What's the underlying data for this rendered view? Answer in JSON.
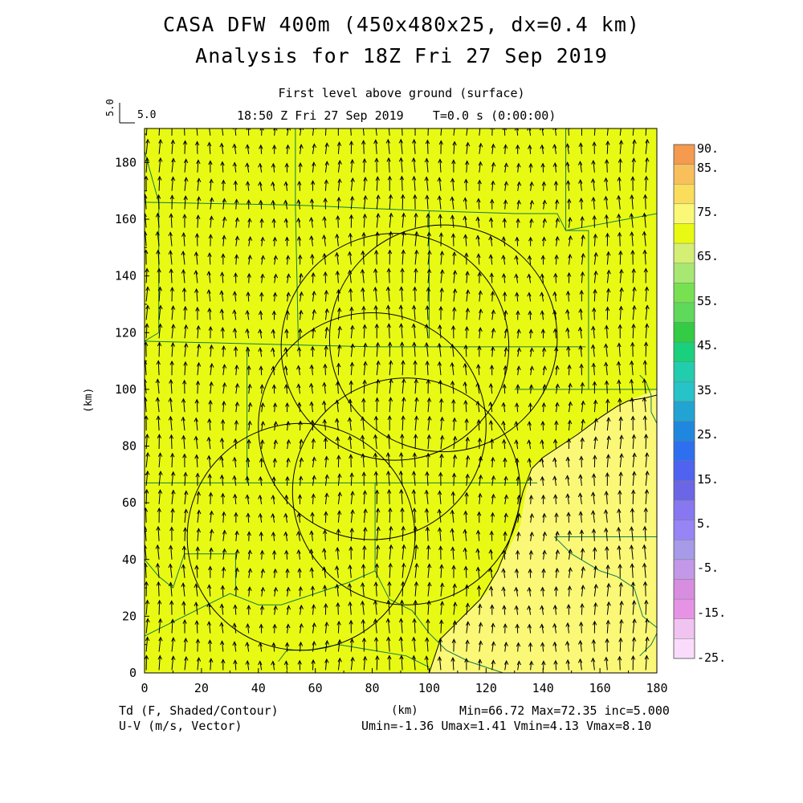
{
  "header": {
    "title_line1": "CASA DFW 400m (450x480x25, dx=0.4 km)",
    "title_line2": "Analysis for 18Z Fri 27 Sep 2019",
    "subtitle": "First level above ground (surface)",
    "time_line": "18:50 Z Fri 27 Sep 2019    T=0.0 s (0:00:00)",
    "ref_vector_value": "5.0",
    "ref_vector_label": "5.0"
  },
  "axes": {
    "x_ticks": [
      "0",
      "20",
      "40",
      "60",
      "80",
      "100",
      "120",
      "140",
      "160",
      "180"
    ],
    "y_ticks": [
      "0",
      "20",
      "40",
      "60",
      "80",
      "100",
      "120",
      "140",
      "160",
      "180"
    ],
    "x_unit": "(km)",
    "y_unit": "(km)",
    "x_range": [
      0,
      180
    ],
    "y_range": [
      0,
      192
    ]
  },
  "colorbar": {
    "labels": [
      "90.",
      "85.",
      "75.",
      "65.",
      "55.",
      "45.",
      "35.",
      "25.",
      "15.",
      "5.",
      "-5.",
      "-15.",
      "-25."
    ],
    "colors": [
      "#f59a4e",
      "#f8bf5b",
      "#fbdd5c",
      "#fbf877",
      "#e8fa13",
      "#d4ef74",
      "#a7e873",
      "#77e151",
      "#5fd95b",
      "#33cc44",
      "#19d17d",
      "#22cdae",
      "#27c3c8",
      "#21a4d3",
      "#1f88de",
      "#2e6ff0",
      "#4f62f0",
      "#6b66e6",
      "#8778f1",
      "#9784f5",
      "#a79ae9",
      "#c498e8",
      "#d88ee0",
      "#e693e6",
      "#f0c3f0",
      "#fbdbfb"
    ]
  },
  "footer": {
    "left_line1": "Td (F, Shaded/Contour)",
    "left_line2": "U-V (m/s, Vector)",
    "x_unit": "(km)",
    "stats_line1": "Min=66.72 Max=72.35 inc=5.000",
    "stats_line2": "Umin=-1.36 Umax=1.41 Vmin=4.13 Vmax=8.10"
  },
  "field": {
    "variable": "Td",
    "min": 66.72,
    "max": 72.35,
    "contour_inc": 5.0,
    "main_color": "#e8fa13",
    "warm_color": "#fbf877",
    "contour_value": 70,
    "vector_color": "#000000",
    "boundary_color": "#0f7a4a"
  },
  "radars": [
    {
      "cx_km": 88,
      "cy_km": 115,
      "r_km": 40
    },
    {
      "cx_km": 105,
      "cy_km": 118,
      "r_km": 40
    },
    {
      "cx_km": 92,
      "cy_km": 64,
      "r_km": 40
    },
    {
      "cx_km": 55,
      "cy_km": 48,
      "r_km": 40
    },
    {
      "cx_km": 80,
      "cy_km": 87,
      "r_km": 40
    }
  ]
}
